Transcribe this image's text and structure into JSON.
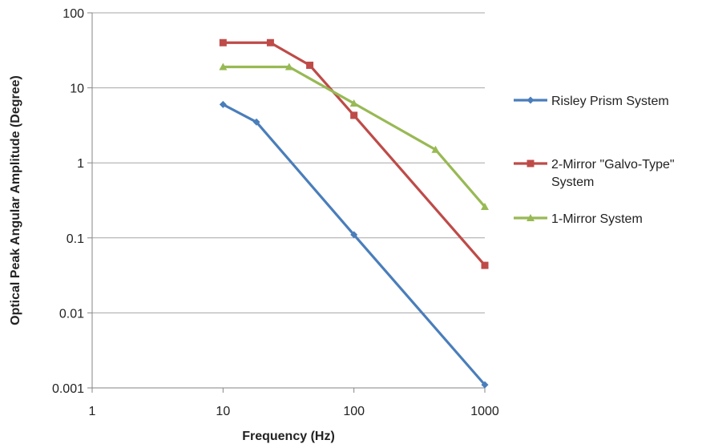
{
  "chart_data": {
    "type": "line",
    "xscale": "log",
    "yscale": "log",
    "xlim": [
      1,
      1000
    ],
    "ylim": [
      0.001,
      100
    ],
    "xlabel": "Frequency (Hz)",
    "ylabel": "Optical Peak Angular Amplitude (Degree)",
    "x_ticks": [
      "1",
      "10",
      "100",
      "1000"
    ],
    "y_ticks": [
      "0.001",
      "0.01",
      "0.1",
      "1",
      "10",
      "100"
    ],
    "grid": "horizontal",
    "legend": "right",
    "series": [
      {
        "name": "Risley Prism System",
        "color": "#4a7ebb",
        "marker": "diamond",
        "points": [
          [
            10,
            6.0
          ],
          [
            18,
            3.5
          ],
          [
            100,
            0.11
          ],
          [
            1000,
            0.0011
          ]
        ]
      },
      {
        "name": "2-Mirror \"Galvo-Type\" System",
        "legend_lines": [
          "2-Mirror \"Galvo-Type\"",
          "System"
        ],
        "color": "#be4b48",
        "marker": "square",
        "points": [
          [
            10,
            40
          ],
          [
            23,
            40
          ],
          [
            46,
            20
          ],
          [
            100,
            4.3
          ],
          [
            1000,
            0.043
          ]
        ]
      },
      {
        "name": "1-Mirror System",
        "color": "#98b954",
        "marker": "triangle",
        "points": [
          [
            10,
            19
          ],
          [
            32,
            19
          ],
          [
            100,
            6.2
          ],
          [
            420,
            1.5
          ],
          [
            1000,
            0.26
          ]
        ]
      }
    ]
  }
}
